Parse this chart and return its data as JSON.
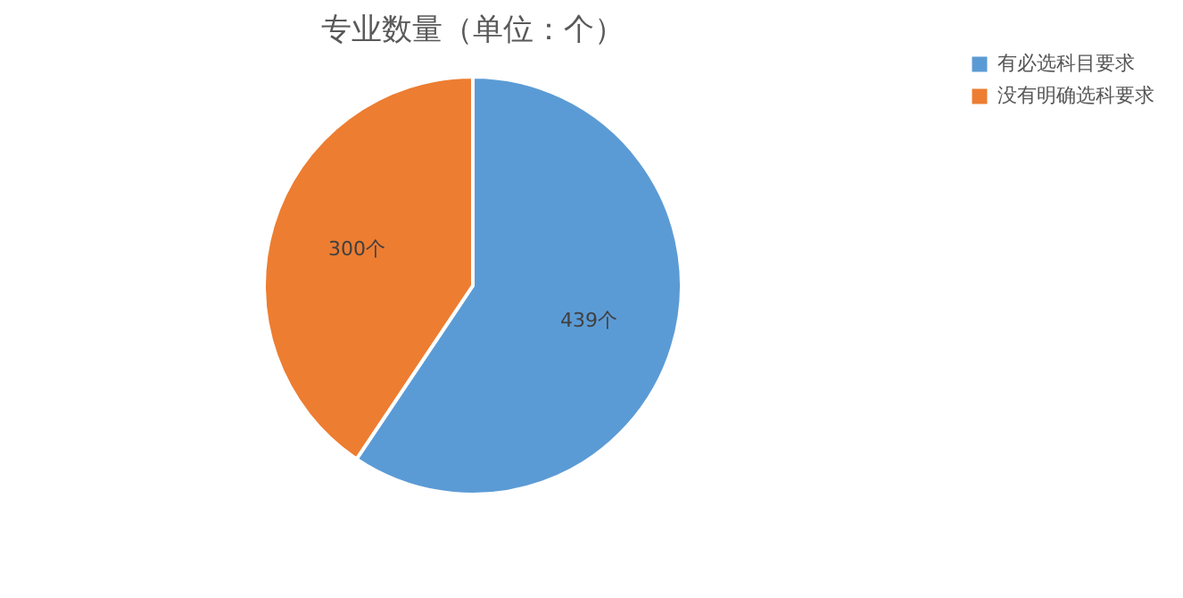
{
  "chart_data": {
    "type": "pie",
    "title": "专业数量（单位：个）",
    "categories": [
      "有必选科目要求",
      "没有明确选科要求"
    ],
    "values": [
      439,
      300
    ],
    "colors": [
      "#5b9bd5",
      "#ed7d31"
    ],
    "value_labels": [
      "439个",
      "300个"
    ],
    "legend": "right"
  }
}
